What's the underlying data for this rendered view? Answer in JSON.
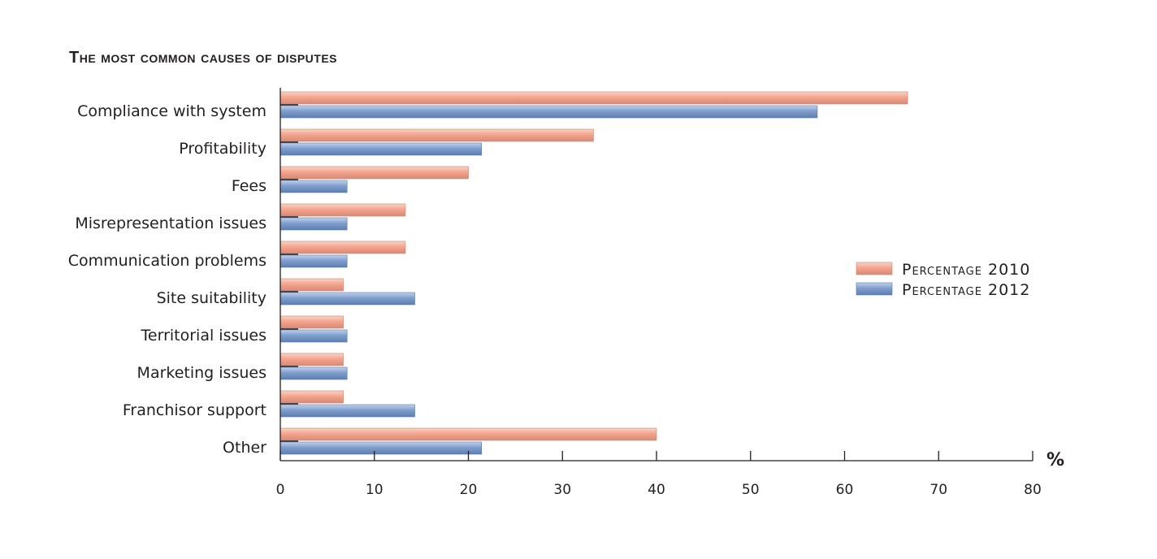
{
  "chart_data": {
    "type": "bar",
    "orientation": "horizontal",
    "title": "The most common causes of disputes",
    "categories": [
      "Compliance with system",
      "Profitability",
      "Fees",
      "Misrepresentation issues",
      "Communication problems",
      "Site suitability",
      "Territorial issues",
      "Marketing issues",
      "Franchisor support",
      "Other"
    ],
    "series": [
      {
        "name": "Percentage 2010",
        "color": "#f2a08a",
        "values": [
          66.7,
          33.3,
          20.0,
          13.3,
          13.3,
          6.7,
          6.7,
          6.7,
          6.7,
          40.0
        ]
      },
      {
        "name": "Percentage 2012",
        "color": "#7e9ccc",
        "values": [
          57.1,
          21.4,
          7.1,
          7.1,
          7.1,
          14.3,
          7.1,
          7.1,
          14.3,
          21.4
        ]
      }
    ],
    "xlim": [
      0,
      80
    ],
    "xticks": [
      0,
      10,
      20,
      30,
      40,
      50,
      60,
      70,
      80
    ],
    "xunit": "%",
    "grid": false,
    "legend_position": "right"
  }
}
